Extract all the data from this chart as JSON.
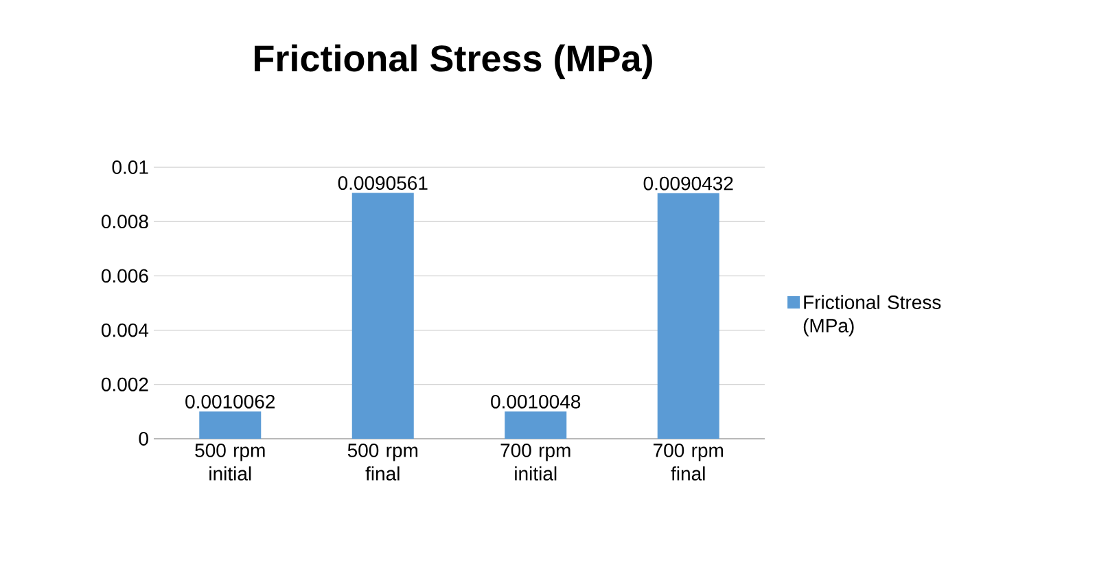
{
  "chart_data": {
    "type": "bar",
    "title": "Frictional Stress (MPa)",
    "categories": [
      "500 rpm initial",
      "500 rpm final",
      "700 rpm initial",
      "700 rpm final"
    ],
    "series": [
      {
        "name": "Frictional Stress (MPa)",
        "color": "#5b9bd5",
        "values": [
          0.0010062,
          0.0090561,
          0.0010048,
          0.0090432
        ]
      }
    ],
    "ylim": [
      0,
      0.01
    ],
    "yticks": [
      0,
      0.002,
      0.004,
      0.006,
      0.008,
      0.01
    ],
    "grid": "y",
    "legend": "right",
    "data_labels": true
  }
}
